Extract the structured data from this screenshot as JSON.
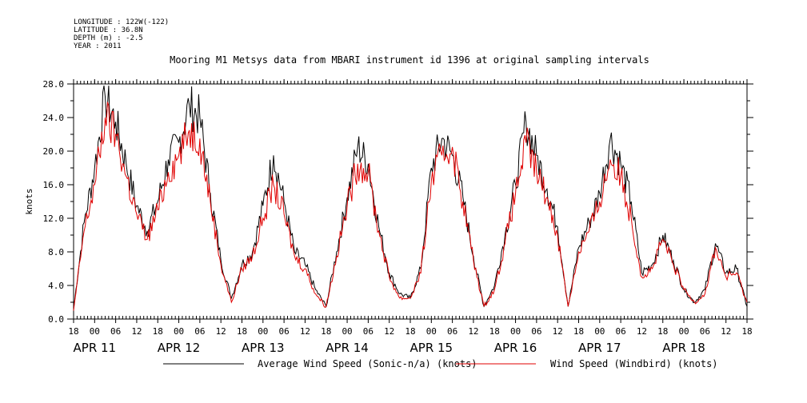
{
  "header": {
    "meta": [
      "LONGITUDE : 122W(-122)",
      "LATITUDE : 36.8N",
      "DEPTH (m) : -2.5",
      "YEAR : 2011"
    ],
    "title": "Mooring M1 Metsys data from MBARI instrument id 1396 at original sampling intervals"
  },
  "chart_data": {
    "type": "line",
    "title": "Mooring M1 Metsys data from MBARI instrument id 1396 at original sampling intervals",
    "xlabel": "",
    "ylabel": "knots",
    "ylim": [
      0,
      28
    ],
    "xlim": [
      "2011-04-10 18:00",
      "2011-04-18 18:00"
    ],
    "y_ticks": [
      "0.0",
      "4.0",
      "8.0",
      "12.0",
      "16.0",
      "20.0",
      "24.0",
      "28.0"
    ],
    "x_hour_ticks": [
      "18",
      "00",
      "06",
      "12",
      "18",
      "00",
      "06",
      "12",
      "18",
      "00",
      "06",
      "12",
      "18",
      "00",
      "06",
      "12",
      "18",
      "00",
      "06",
      "12",
      "18",
      "00",
      "06",
      "12",
      "18",
      "00",
      "06",
      "12",
      "18",
      "00",
      "06",
      "12",
      "18"
    ],
    "x_date_labels": [
      "APR 11",
      "APR 12",
      "APR 13",
      "APR 14",
      "APR 15",
      "APR 16",
      "APR 17",
      "APR 18"
    ],
    "grid": false,
    "legend_position": "bottom",
    "series": [
      {
        "name": "Average Wind Speed (Sonic-n/a) (knots)",
        "color": "#000000",
        "x": [
          "2011-04-10 18:00",
          "2011-04-10 21:00",
          "2011-04-11 00:00",
          "2011-04-11 03:00",
          "2011-04-11 06:00",
          "2011-04-11 09:00",
          "2011-04-11 12:00",
          "2011-04-11 15:00",
          "2011-04-11 18:00",
          "2011-04-11 21:00",
          "2011-04-12 00:00",
          "2011-04-12 03:00",
          "2011-04-12 06:00",
          "2011-04-12 09:00",
          "2011-04-12 12:00",
          "2011-04-12 15:00",
          "2011-04-12 18:00",
          "2011-04-12 21:00",
          "2011-04-13 00:00",
          "2011-04-13 03:00",
          "2011-04-13 06:00",
          "2011-04-13 09:00",
          "2011-04-13 12:00",
          "2011-04-13 15:00",
          "2011-04-13 18:00",
          "2011-04-13 21:00",
          "2011-04-14 00:00",
          "2011-04-14 03:00",
          "2011-04-14 06:00",
          "2011-04-14 09:00",
          "2011-04-14 12:00",
          "2011-04-14 15:00",
          "2011-04-14 18:00",
          "2011-04-14 21:00",
          "2011-04-15 00:00",
          "2011-04-15 03:00",
          "2011-04-15 06:00",
          "2011-04-15 09:00",
          "2011-04-15 12:00",
          "2011-04-15 15:00",
          "2011-04-15 18:00",
          "2011-04-15 21:00",
          "2011-04-16 00:00",
          "2011-04-16 03:00",
          "2011-04-16 06:00",
          "2011-04-16 09:00",
          "2011-04-16 12:00",
          "2011-04-16 15:00",
          "2011-04-16 18:00",
          "2011-04-16 21:00",
          "2011-04-17 00:00",
          "2011-04-17 03:00",
          "2011-04-17 06:00",
          "2011-04-17 09:00",
          "2011-04-17 12:00",
          "2011-04-17 15:00",
          "2011-04-17 18:00",
          "2011-04-17 21:00",
          "2011-04-18 00:00",
          "2011-04-18 03:00",
          "2011-04-18 06:00",
          "2011-04-18 09:00",
          "2011-04-18 12:00",
          "2011-04-18 15:00",
          "2011-04-18 18:00"
        ],
        "values": [
          1.2,
          11.5,
          18.0,
          26.5,
          23.5,
          18.5,
          13.5,
          10.5,
          14.0,
          19.0,
          21.0,
          25.5,
          24.0,
          15.0,
          7.0,
          2.5,
          6.5,
          8.0,
          13.5,
          19.5,
          14.0,
          8.0,
          6.5,
          3.5,
          1.5,
          8.0,
          14.5,
          20.5,
          18.5,
          11.0,
          5.5,
          3.0,
          2.5,
          6.0,
          18.0,
          21.5,
          19.5,
          14.5,
          7.5,
          1.5,
          4.0,
          10.0,
          16.0,
          23.5,
          19.5,
          15.5,
          11.0,
          1.5,
          8.5,
          11.5,
          15.0,
          21.5,
          18.5,
          14.0,
          5.5,
          6.5,
          10.0,
          7.0,
          3.5,
          2.0,
          3.5,
          9.0,
          5.5,
          6.0,
          1.5
        ]
      },
      {
        "name": "Wind Speed (Windbird) (knots)",
        "color": "#e00000",
        "x": [
          "2011-04-10 18:00",
          "2011-04-10 21:00",
          "2011-04-11 00:00",
          "2011-04-11 03:00",
          "2011-04-11 06:00",
          "2011-04-11 09:00",
          "2011-04-11 12:00",
          "2011-04-11 15:00",
          "2011-04-11 18:00",
          "2011-04-11 21:00",
          "2011-04-12 00:00",
          "2011-04-12 03:00",
          "2011-04-12 06:00",
          "2011-04-12 09:00",
          "2011-04-12 12:00",
          "2011-04-12 15:00",
          "2011-04-12 18:00",
          "2011-04-12 21:00",
          "2011-04-13 00:00",
          "2011-04-13 03:00",
          "2011-04-13 06:00",
          "2011-04-13 09:00",
          "2011-04-13 12:00",
          "2011-04-13 15:00",
          "2011-04-13 18:00",
          "2011-04-13 21:00",
          "2011-04-14 00:00",
          "2011-04-14 03:00",
          "2011-04-14 06:00",
          "2011-04-14 09:00",
          "2011-04-14 12:00",
          "2011-04-14 15:00",
          "2011-04-14 18:00",
          "2011-04-14 21:00",
          "2011-04-15 00:00",
          "2011-04-15 03:00",
          "2011-04-15 06:00",
          "2011-04-15 09:00",
          "2011-04-15 12:00",
          "2011-04-15 15:00",
          "2011-04-15 18:00",
          "2011-04-15 21:00",
          "2011-04-16 00:00",
          "2011-04-16 03:00",
          "2011-04-16 06:00",
          "2011-04-16 09:00",
          "2011-04-16 12:00",
          "2011-04-16 15:00",
          "2011-04-16 18:00",
          "2011-04-16 21:00",
          "2011-04-17 00:00",
          "2011-04-17 03:00",
          "2011-04-17 06:00",
          "2011-04-17 09:00",
          "2011-04-17 12:00",
          "2011-04-17 15:00",
          "2011-04-17 18:00",
          "2011-04-17 21:00",
          "2011-04-18 00:00",
          "2011-04-18 03:00",
          "2011-04-18 06:00",
          "2011-04-18 09:00",
          "2011-04-18 12:00",
          "2011-04-18 15:00",
          "2011-04-18 18:00"
        ],
        "values": [
          1.0,
          10.5,
          16.0,
          24.0,
          22.0,
          17.0,
          12.5,
          9.5,
          13.0,
          17.5,
          19.5,
          22.5,
          21.5,
          14.0,
          6.5,
          2.0,
          6.0,
          7.5,
          12.0,
          16.0,
          12.5,
          7.5,
          6.0,
          3.0,
          1.5,
          7.5,
          13.5,
          18.5,
          17.5,
          10.5,
          5.0,
          2.5,
          2.5,
          5.5,
          16.5,
          19.5,
          20.5,
          14.0,
          7.0,
          1.5,
          3.5,
          9.0,
          15.0,
          21.0,
          17.5,
          14.5,
          10.0,
          1.5,
          8.0,
          10.5,
          14.0,
          19.0,
          17.0,
          12.0,
          5.0,
          6.0,
          9.5,
          6.5,
          3.5,
          2.0,
          3.0,
          8.5,
          5.0,
          5.5,
          2.0
        ]
      }
    ]
  }
}
